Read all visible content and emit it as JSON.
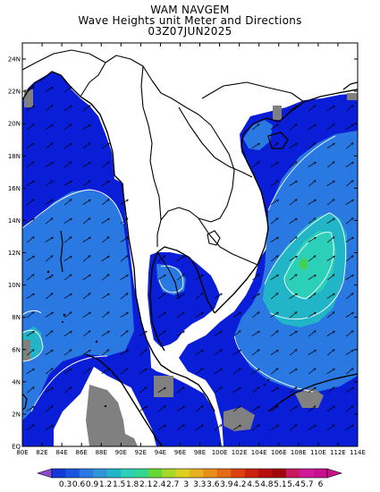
{
  "header": {
    "line1": "WAM NAVGEM",
    "line2": "Wave Heights unit Meter and Directions",
    "line3": "03Z07JUN2025"
  },
  "axes": {
    "lon_labels": [
      "80E",
      "82E",
      "84E",
      "86E",
      "88E",
      "90E",
      "92E",
      "94E",
      "96E",
      "98E",
      "100E",
      "102E",
      "104E",
      "106E",
      "108E",
      "110E",
      "112E",
      "114E"
    ],
    "lat_labels": [
      "EQ",
      "2N",
      "4N",
      "6N",
      "8N",
      "10N",
      "12N",
      "14N",
      "16N",
      "18N",
      "20N",
      "22N",
      "24N"
    ]
  },
  "colorbar": {
    "labels": [
      "0.3",
      "0.6",
      "0.9",
      "1.2",
      "1.5",
      "1.8",
      "2.1",
      "2.4",
      "2.7",
      "3",
      "3.3",
      "3.6",
      "3.9",
      "4.2",
      "4.5",
      "4.8",
      "5.1",
      "5.4",
      "5.7",
      "6"
    ],
    "colors": [
      "#1238d8",
      "#1a55e0",
      "#2a78e2",
      "#2d95d8",
      "#22b5c8",
      "#2ccfb8",
      "#33d890",
      "#66d838",
      "#a6d82a",
      "#dcd020",
      "#e6b020",
      "#e88e1a",
      "#e46a14",
      "#dc4210",
      "#cc2210",
      "#b80c10",
      "#a0060a",
      "#c81860",
      "#d0189a",
      "#c8108c"
    ]
  },
  "legend_levels": {
    "land": "#ffffff",
    "no_data": "#808080",
    "sea_low": "#0a1ed8",
    "sea_mid": "#2a78e2",
    "sea_high": "#22c8c0",
    "sea_peak": "#44d050"
  }
}
